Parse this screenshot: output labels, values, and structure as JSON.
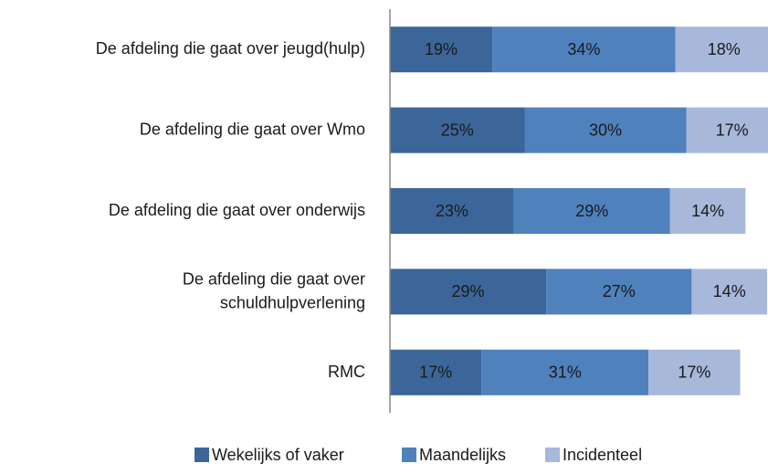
{
  "chart_data": {
    "type": "stacked_barh",
    "categories": [
      [
        "De afdeling die gaat over jeugd(hulp)"
      ],
      [
        "De afdeling die gaat over Wmo"
      ],
      [
        "De afdeling die gaat over onderwijs"
      ],
      [
        "De afdeling die gaat over",
        "schuldhulpverlening"
      ],
      [
        "RMC"
      ]
    ],
    "series": [
      {
        "name": "Wekelijks of vaker",
        "color": "#3c6699",
        "values": [
          19,
          25,
          23,
          29,
          17
        ],
        "value_labels": [
          "19%",
          "25%",
          "23%",
          "29%",
          "17%"
        ]
      },
      {
        "name": "Maandelijks",
        "color": "#4f81bd",
        "values": [
          34,
          30,
          29,
          27,
          31
        ],
        "value_labels": [
          "34%",
          "30%",
          "29%",
          "27%",
          "31%"
        ]
      },
      {
        "name": "Incidenteel",
        "color": "#a7b8da",
        "values": [
          18,
          17,
          14,
          14,
          17
        ],
        "value_labels": [
          "18%",
          "17%",
          "14%",
          "14%",
          "17%"
        ]
      }
    ],
    "xlim": [
      0,
      70
    ],
    "legend": "bottom"
  }
}
